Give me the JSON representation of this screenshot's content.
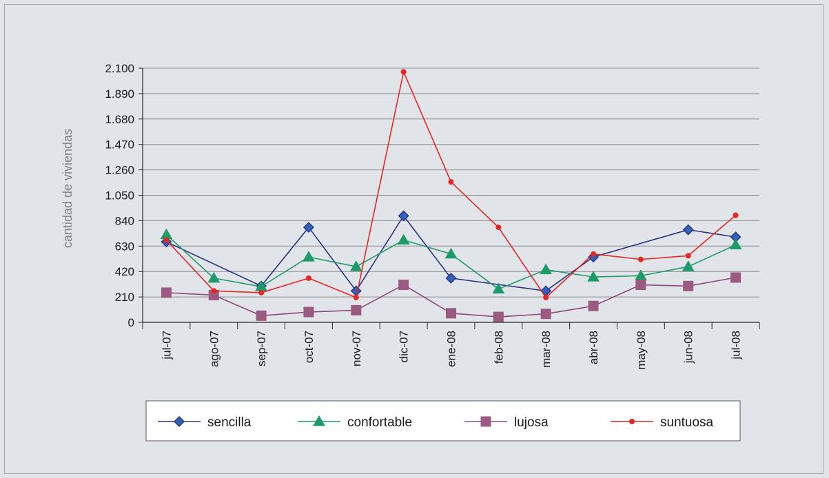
{
  "chart_data": {
    "type": "line",
    "title": "",
    "xlabel": "",
    "ylabel": "cantidad de viviendas",
    "ylim": [
      0,
      2100
    ],
    "yticks": [
      0,
      210,
      420,
      630,
      840,
      1050,
      1260,
      1470,
      1680,
      1890,
      2100
    ],
    "ytick_labels": [
      "0",
      "210",
      "420",
      "630",
      "840",
      "1.050",
      "1.260",
      "1.470",
      "1.680",
      "1.890",
      "2.100"
    ],
    "categories": [
      "jul-07",
      "ago-07",
      "sep-07",
      "oct-07",
      "nov-07",
      "dic-07",
      "ene-08",
      "feb-08",
      "mar-08",
      "abr-08",
      "may-08",
      "jun-08",
      "jul-08"
    ],
    "grid": "horizontal",
    "legend": "bottom",
    "series": [
      {
        "name": "sencilla",
        "color": "#2a3483",
        "marker": "diamond",
        "marker_color": "#2f62b8",
        "values": [
          665,
          null,
          300,
          785,
          260,
          880,
          365,
          null,
          260,
          540,
          null,
          765,
          705
        ]
      },
      {
        "name": "confortable",
        "color": "#1e9a69",
        "marker": "triangle",
        "marker_color": "#1e9a69",
        "values": [
          725,
          365,
          295,
          540,
          460,
          680,
          565,
          275,
          435,
          375,
          385,
          460,
          640
        ]
      },
      {
        "name": "lujosa",
        "color": "#8e4878",
        "marker": "square",
        "marker_color": "#9a5a82",
        "values": [
          245,
          225,
          55,
          85,
          100,
          310,
          75,
          45,
          70,
          135,
          310,
          300,
          370
        ]
      },
      {
        "name": "suntuosa",
        "color": "#e42624",
        "marker": "circle",
        "marker_color": "#e42624",
        "values": [
          680,
          260,
          245,
          365,
          205,
          2070,
          1160,
          785,
          205,
          565,
          520,
          550,
          885
        ]
      }
    ]
  }
}
